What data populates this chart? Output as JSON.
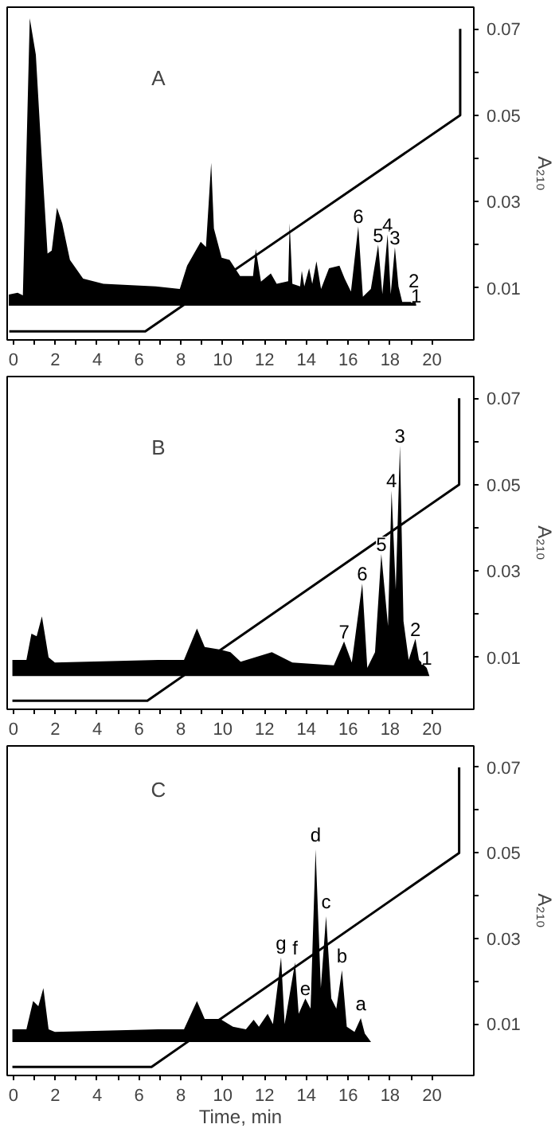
{
  "chart_data": [
    {
      "type": "area",
      "ylabel": "A₂₁₀",
      "xlim": [
        -0.3,
        22
      ],
      "ylim": [
        -0.002,
        0.075
      ],
      "xticks": [
        0,
        {
          "value": 1,
          "label": null
        },
        2,
        {
          "value": 3,
          "label": null
        },
        4,
        {
          "value": 5,
          "label": null
        },
        6,
        {
          "value": 7,
          "label": null
        },
        8,
        {
          "value": 9,
          "label": null
        },
        10,
        {
          "value": 11,
          "label": null
        },
        12,
        {
          "value": 13,
          "label": null
        },
        14,
        {
          "value": 15,
          "label": null
        },
        16,
        {
          "value": 17,
          "label": null
        },
        18,
        {
          "value": 19,
          "label": null
        },
        20
      ],
      "yticks": [
        0.01,
        {
          "value": 0.02,
          "label": null
        },
        0.03,
        {
          "value": 0.04,
          "label": null
        },
        0.05,
        {
          "value": 0.06,
          "label": null
        },
        0.07
      ],
      "annotations": [
        "A",
        {
          "text": "6",
          "x": 16.48,
          "y": 0.0243
        },
        {
          "text": "5",
          "x": 17.43,
          "y": 0.02
        },
        {
          "text": "4",
          "x": 17.88,
          "y": 0.0224
        },
        {
          "text": "3",
          "x": 18.23,
          "y": 0.0194
        },
        {
          "text": "2",
          "x": 19.13,
          "y": 0.0094
        },
        {
          "text": "1",
          "x": 19.25,
          "y": 0.0059
        }
      ],
      "series": [
        {
          "color": "#000000",
          "x": [
            -0.22,
            0.2,
            0.45,
            0.78,
            1.07,
            1.33,
            1.63,
            1.83,
            2.08,
            2.33,
            2.7,
            3.33,
            4.3,
            6.8,
            7.95,
            8.3,
            8.95,
            9.2,
            9.45,
            9.58,
            9.95,
            10.33,
            10.83,
            11.45,
            11.58,
            11.83,
            12.3,
            12.58,
            13.13,
            13.2,
            13.33,
            13.7,
            13.78,
            13.9,
            14.13,
            14.28,
            14.48,
            14.7,
            15.08,
            15.58,
            15.83,
            16.13,
            16.48,
            16.7,
            17.08,
            17.43,
            17.63,
            17.88,
            18.03,
            18.23,
            18.4,
            18.58,
            19.0,
            19.13,
            19.25
          ],
          "values": [
            0.0085,
            0.0089,
            0.0083,
            0.0724,
            0.064,
            0.042,
            0.018,
            0.0187,
            0.0286,
            0.025,
            0.0165,
            0.0122,
            0.011,
            0.0104,
            0.0098,
            0.0152,
            0.0207,
            0.0195,
            0.039,
            0.0238,
            0.017,
            0.0165,
            0.0128,
            0.0128,
            0.019,
            0.0115,
            0.0134,
            0.011,
            0.0116,
            0.025,
            0.011,
            0.0104,
            0.014,
            0.0104,
            0.0146,
            0.011,
            0.0162,
            0.0098,
            0.0146,
            0.0152,
            0.0122,
            0.0092,
            0.0243,
            0.008,
            0.0098,
            0.02,
            0.0086,
            0.0224,
            0.0086,
            0.0194,
            0.0104,
            0.0068,
            0.0068,
            0.0094,
            0.0059
          ]
        },
        {
          "type": "line",
          "color": "#000000",
          "x": [
            -0.2,
            6.3,
            21.35,
            21.35
          ],
          "values": [
            0.0,
            0.0,
            0.05,
            0.07
          ]
        }
      ]
    },
    {
      "type": "area",
      "ylabel": "A₂₁₀",
      "xlim": [
        -0.3,
        22
      ],
      "ylim": [
        -0.002,
        0.075
      ],
      "xticks": [
        0,
        {
          "value": 1,
          "label": null
        },
        2,
        {
          "value": 3,
          "label": null
        },
        4,
        {
          "value": 5,
          "label": null
        },
        6,
        {
          "value": 7,
          "label": null
        },
        8,
        {
          "value": 9,
          "label": null
        },
        10,
        {
          "value": 11,
          "label": null
        },
        12,
        {
          "value": 13,
          "label": null
        },
        14,
        {
          "value": 15,
          "label": null
        },
        16,
        {
          "value": 17,
          "label": null
        },
        18,
        {
          "value": 19,
          "label": null
        },
        20
      ],
      "yticks": [
        0.01,
        {
          "value": 0.02,
          "label": null
        },
        0.03,
        {
          "value": 0.04,
          "label": null
        },
        0.05,
        {
          "value": 0.06,
          "label": null
        },
        0.07
      ],
      "annotations": [
        "B",
        {
          "text": "7",
          "x": 15.8,
          "y": 0.0137
        },
        {
          "text": "6",
          "x": 16.67,
          "y": 0.0271
        },
        {
          "text": "5",
          "x": 17.58,
          "y": 0.0339
        },
        {
          "text": "4",
          "x": 18.07,
          "y": 0.0486
        },
        {
          "text": "3",
          "x": 18.47,
          "y": 0.059
        },
        {
          "text": "2",
          "x": 19.21,
          "y": 0.0143
        },
        {
          "text": "1",
          "x": 19.75,
          "y": 0.0076
        }
      ],
      "series": [
        {
          "color": "#000000",
          "x": [
            -0.05,
            0.62,
            0.86,
            1.11,
            1.36,
            1.68,
            1.98,
            6.9,
            8.15,
            8.77,
            9.14,
            9.88,
            10.37,
            10.86,
            12.35,
            12.84,
            13.33,
            15.31,
            15.8,
            16.17,
            16.67,
            16.91,
            17.28,
            17.58,
            17.9,
            18.07,
            18.27,
            18.47,
            18.64,
            18.89,
            19.21,
            19.38,
            19.75,
            19.88
          ],
          "values": [
            0.0094,
            0.0094,
            0.0155,
            0.0149,
            0.0195,
            0.01,
            0.0088,
            0.0094,
            0.0094,
            0.0167,
            0.0124,
            0.0118,
            0.0112,
            0.009,
            0.0112,
            0.01,
            0.0088,
            0.0082,
            0.0137,
            0.0088,
            0.0271,
            0.0076,
            0.0112,
            0.0339,
            0.0173,
            0.0486,
            0.0257,
            0.059,
            0.0184,
            0.0094,
            0.0143,
            0.0094,
            0.0076,
            0.0057
          ]
        },
        {
          "type": "line",
          "color": "#000000",
          "x": [
            -0.05,
            6.4,
            21.3,
            21.3
          ],
          "values": [
            0.0,
            0.0,
            0.05,
            0.07
          ]
        }
      ]
    },
    {
      "type": "area",
      "ylabel": "A₂₁₀",
      "xlabel": "Time, min",
      "xlim": [
        -0.3,
        22
      ],
      "ylim": [
        -0.002,
        0.075
      ],
      "xticks": [
        0,
        {
          "value": 1,
          "label": null
        },
        2,
        {
          "value": 3,
          "label": null
        },
        4,
        {
          "value": 5,
          "label": null
        },
        6,
        {
          "value": 7,
          "label": null
        },
        8,
        {
          "value": 9,
          "label": null
        },
        10,
        {
          "value": 11,
          "label": null
        },
        12,
        {
          "value": 13,
          "label": null
        },
        14,
        {
          "value": 15,
          "label": null
        },
        16,
        {
          "value": 17,
          "label": null
        },
        18,
        {
          "value": 19,
          "label": null
        },
        20
      ],
      "yticks": [
        0.01,
        {
          "value": 0.02,
          "label": null
        },
        0.03,
        {
          "value": 0.04,
          "label": null
        },
        0.05,
        {
          "value": 0.06,
          "label": null
        },
        0.07
      ],
      "annotations": [
        "C",
        {
          "text": "g",
          "x": 12.79,
          "y": 0.0256
        },
        {
          "text": "f",
          "x": 13.46,
          "y": 0.0244
        },
        {
          "text": "e",
          "x": 13.95,
          "y": 0.016
        },
        {
          "text": "d",
          "x": 14.44,
          "y": 0.0508
        },
        {
          "text": "c",
          "x": 14.94,
          "y": 0.0352
        },
        {
          "text": "b",
          "x": 15.7,
          "y": 0.0226
        },
        {
          "text": "a",
          "x": 16.6,
          "y": 0.0114
        }
      ],
      "series": [
        {
          "color": "#000000",
          "x": [
            -0.05,
            0.62,
            0.94,
            1.19,
            1.43,
            1.68,
            1.98,
            6.9,
            8.15,
            8.77,
            9.14,
            9.88,
            10.49,
            11.11,
            11.48,
            11.73,
            12.15,
            12.4,
            12.79,
            12.96,
            13.46,
            13.63,
            13.95,
            14.2,
            14.44,
            14.69,
            14.94,
            15.19,
            15.43,
            15.7,
            15.93,
            16.3,
            16.6,
            16.79,
            17.09
          ],
          "values": [
            0.0088,
            0.0088,
            0.0154,
            0.0142,
            0.0184,
            0.0088,
            0.0082,
            0.0088,
            0.0088,
            0.0154,
            0.0112,
            0.0112,
            0.0094,
            0.0088,
            0.011,
            0.0094,
            0.0124,
            0.01,
            0.0256,
            0.01,
            0.0244,
            0.0124,
            0.016,
            0.0136,
            0.0508,
            0.0184,
            0.0352,
            0.016,
            0.0136,
            0.0226,
            0.0094,
            0.0082,
            0.0114,
            0.0078,
            0.0058
          ]
        },
        {
          "type": "line",
          "color": "#000000",
          "x": [
            -0.05,
            6.6,
            21.3,
            21.3
          ],
          "values": [
            0.0,
            0.0,
            0.05,
            0.07
          ]
        }
      ]
    }
  ]
}
